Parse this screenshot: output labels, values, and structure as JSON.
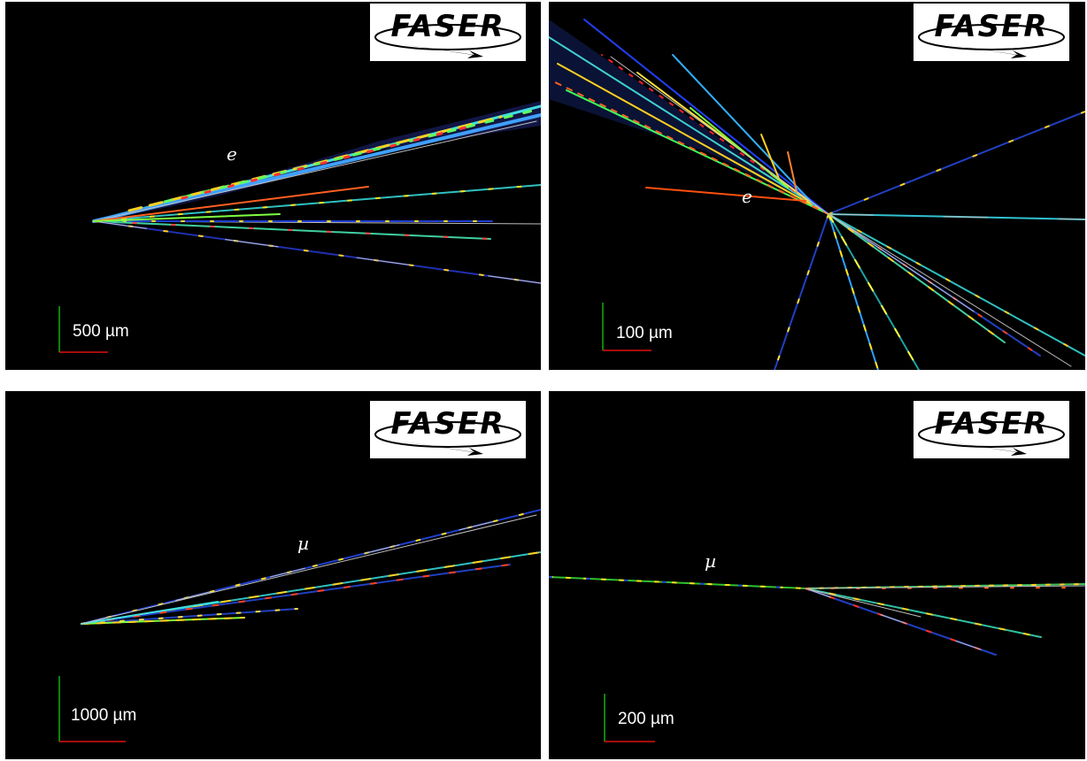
{
  "logo_text": "FASER",
  "panels": [
    {
      "id": "top-left",
      "particle": "e",
      "scale": "500 µm"
    },
    {
      "id": "top-right",
      "particle": "e",
      "scale": "100 µm"
    },
    {
      "id": "bottom-left",
      "particle": "µ",
      "scale": "1000 µm"
    },
    {
      "id": "bottom-right",
      "particle": "µ",
      "scale": "200 µm"
    }
  ],
  "colors": {
    "background": "#000000",
    "track_reconstructed": "#c0c0c0",
    "scale_x_axis": "#e01010",
    "scale_y_axis": "#10b010"
  }
}
